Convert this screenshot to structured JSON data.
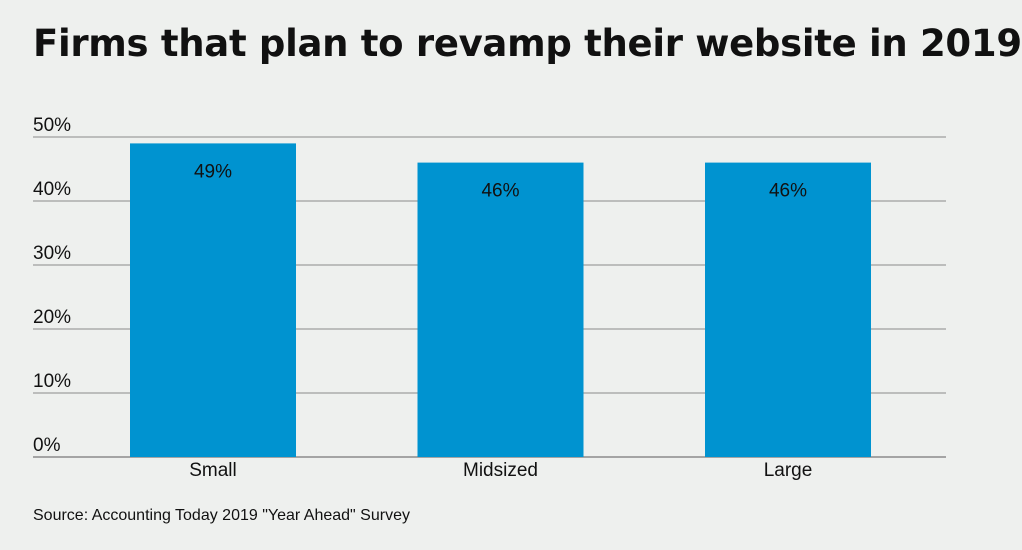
{
  "chart_data": {
    "type": "bar",
    "title": "Firms that plan to revamp their website in 2019",
    "categories": [
      "Small",
      "Midsized",
      "Large"
    ],
    "values": [
      49,
      46,
      46
    ],
    "data_labels": [
      "49%",
      "46%",
      "46%"
    ],
    "ylim": [
      0,
      50
    ],
    "yticks": [
      0,
      10,
      20,
      30,
      40,
      50
    ],
    "ytick_labels": [
      "0%",
      "10%",
      "20%",
      "30%",
      "40%",
      "50%"
    ],
    "xlabel": "",
    "ylabel": "",
    "grid": true,
    "legend": "none",
    "bar_color": "#0093d0",
    "source": "Source: Accounting Today 2019 \"Year Ahead\" Survey"
  }
}
